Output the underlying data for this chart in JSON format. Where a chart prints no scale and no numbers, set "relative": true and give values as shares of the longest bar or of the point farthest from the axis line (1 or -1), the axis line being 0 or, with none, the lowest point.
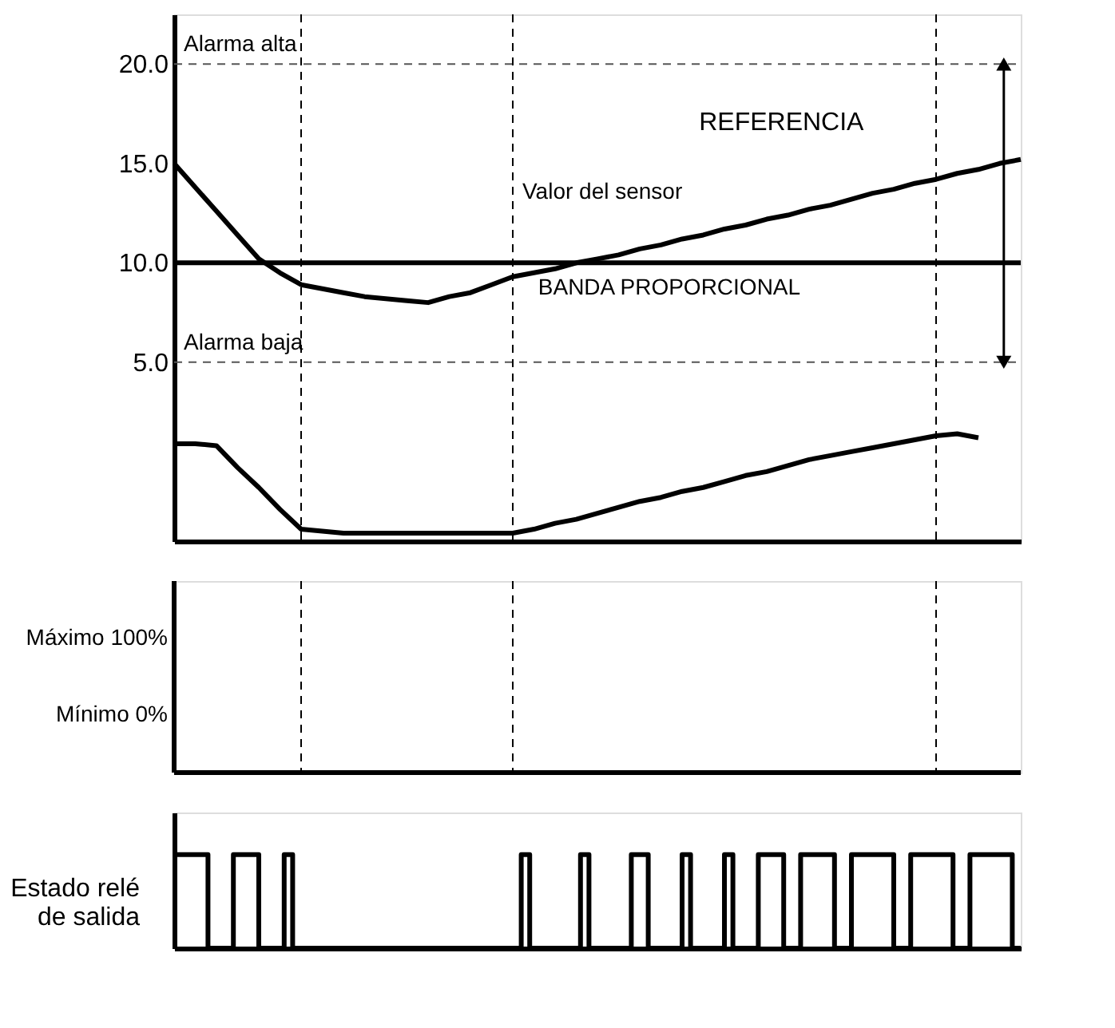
{
  "chart_data": [
    {
      "type": "line",
      "ylim": [
        -4,
        22.5
      ],
      "categories": [
        null,
        null,
        null,
        null,
        null,
        null,
        null,
        null,
        null,
        null,
        null,
        null,
        null,
        null,
        null,
        null,
        null,
        null,
        null,
        null,
        null,
        null,
        null,
        null,
        null,
        null,
        null,
        null,
        null,
        null,
        null,
        null,
        null,
        null,
        null,
        null,
        null,
        null,
        null,
        null,
        null
      ],
      "yticks": [
        {
          "value": 5,
          "label": "5.0"
        },
        {
          "value": 10,
          "label": "10.0"
        },
        {
          "value": 15,
          "label": "15.0"
        },
        {
          "value": 20,
          "label": "20.0"
        }
      ],
      "tick_labels": "y",
      "grid": "x",
      "series": [
        {
          "name": "Valor del sensor",
          "color": "#000000",
          "values": [
            15,
            13.8,
            12.6,
            11.4,
            10.2,
            9.5,
            8.9,
            8.7,
            8.5,
            8.3,
            8.2,
            8.1,
            8.0,
            8.3,
            8.5,
            8.9,
            9.3,
            9.5,
            9.7,
            10.0,
            10.2,
            10.4,
            10.7,
            10.9,
            11.2,
            11.4,
            11.7,
            11.9,
            12.2,
            12.4,
            12.7,
            12.9,
            13.2,
            13.5,
            13.7,
            14.0,
            14.2,
            14.5,
            14.7,
            15.0,
            15.2
          ]
        },
        {
          "color": "#000000",
          "values": [
            0.9,
            0.9,
            0.8,
            -0.3,
            -1.3,
            -2.4,
            -3.4,
            -3.5,
            -3.6,
            -3.6,
            -3.6,
            -3.6,
            -3.6,
            -3.6,
            -3.6,
            -3.6,
            -3.6,
            -3.4,
            -3.1,
            -2.9,
            -2.6,
            -2.3,
            -2.0,
            -1.8,
            -1.5,
            -1.3,
            -1.0,
            -0.7,
            -0.5,
            -0.2,
            0.1,
            0.3,
            0.5,
            0.7,
            0.9,
            1.1,
            1.3,
            1.4,
            1.2,
            null,
            null
          ]
        }
      ],
      "ref_lines": [
        {
          "axis": "y",
          "value": 20,
          "label": "Alarma alta",
          "color": "#555555",
          "line_style": "dashed"
        },
        {
          "axis": "y",
          "value": 5,
          "label": "Alarma baja",
          "color": "#555555",
          "line_style": "dashed"
        },
        {
          "axis": "y",
          "value": 10,
          "color": "#000000",
          "line_style": "solid"
        }
      ],
      "annotations": [
        "REFERENCIA",
        "BANDA PROPORCIONAL"
      ]
    },
    {
      "type": "other",
      "annotations": [
        "Máximo 100%",
        "Mínimo 0%"
      ]
    },
    {
      "type": "step",
      "relative": true,
      "ylabel": "Estado relé de salida",
      "tick_labels": false,
      "categories": [
        null,
        null,
        null,
        null,
        null,
        null,
        null,
        null,
        null,
        null,
        null,
        null,
        null,
        null,
        null,
        null,
        null,
        null,
        null,
        null,
        null,
        null,
        null,
        null,
        null,
        null,
        null,
        null,
        null,
        null,
        null,
        null,
        null,
        null,
        null,
        null,
        null,
        null,
        null,
        null,
        null,
        null,
        null,
        null,
        null,
        null,
        null,
        null,
        null,
        null,
        null,
        null,
        null,
        null,
        null,
        null,
        null,
        null,
        null,
        null,
        null,
        null,
        null,
        null,
        null,
        null,
        null,
        null,
        null,
        null,
        null,
        null,
        null,
        null,
        null,
        null,
        null,
        null,
        null,
        null,
        null,
        null,
        null,
        null,
        null,
        null,
        null,
        null,
        null,
        null,
        null,
        null,
        null,
        null,
        null,
        null,
        null,
        null,
        null,
        null,
        null
      ],
      "series": [
        {
          "color": "#000000",
          "values": [
            1,
            1,
            1,
            1,
            0,
            0,
            0,
            1,
            1,
            1,
            0,
            0,
            0,
            1,
            0,
            0,
            0,
            0,
            0,
            0,
            0,
            0,
            0,
            0,
            0,
            0,
            0,
            0,
            0,
            0,
            0,
            0,
            0,
            0,
            0,
            0,
            0,
            0,
            0,
            0,
            0,
            1,
            0,
            0,
            0,
            0,
            0,
            0,
            1,
            0,
            0,
            0,
            0,
            0,
            1,
            1,
            0,
            0,
            0,
            0,
            1,
            0,
            0,
            0,
            0,
            1,
            0,
            0,
            0,
            1,
            1,
            1,
            0,
            0,
            1,
            1,
            1,
            1,
            0,
            0,
            1,
            1,
            1,
            1,
            1,
            0,
            0,
            1,
            1,
            1,
            1,
            1,
            0,
            0,
            1,
            1,
            1,
            1,
            1,
            0,
            0
          ]
        }
      ]
    }
  ]
}
